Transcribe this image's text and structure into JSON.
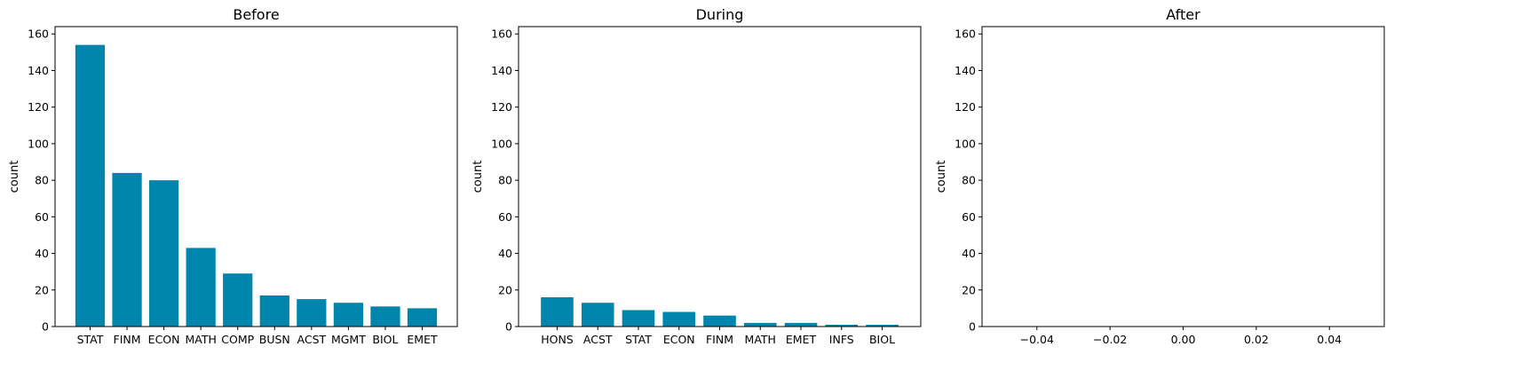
{
  "colors": {
    "bar": "#0086ad"
  },
  "chart_data": [
    {
      "type": "bar",
      "title": "Before",
      "xlabel": "",
      "ylabel": "count",
      "ylim": [
        0,
        164
      ],
      "yticks": [
        0,
        20,
        40,
        60,
        80,
        100,
        120,
        140,
        160
      ],
      "categories": [
        "STAT",
        "FINM",
        "ECON",
        "MATH",
        "COMP",
        "BUSN",
        "ACST",
        "MGMT",
        "BIOL",
        "EMET"
      ],
      "values": [
        154,
        84,
        80,
        43,
        29,
        17,
        15,
        13,
        11,
        10
      ],
      "grid": false
    },
    {
      "type": "bar",
      "title": "During",
      "xlabel": "",
      "ylabel": "count",
      "ylim": [
        0,
        164
      ],
      "yticks": [
        0,
        20,
        40,
        60,
        80,
        100,
        120,
        140,
        160
      ],
      "categories": [
        "HONS",
        "ACST",
        "STAT",
        "ECON",
        "FINM",
        "MATH",
        "EMET",
        "INFS",
        "BIOL"
      ],
      "values": [
        16,
        13,
        9,
        8,
        6,
        2,
        2,
        1,
        1
      ],
      "grid": false
    },
    {
      "type": "bar",
      "title": "After",
      "xlabel": "",
      "ylabel": "count",
      "ylim": [
        0,
        164
      ],
      "yticks": [
        0,
        20,
        40,
        60,
        80,
        100,
        120,
        140,
        160
      ],
      "categories": [],
      "values": [],
      "xlim": [
        -0.055,
        0.055
      ],
      "xticks": [
        -0.04,
        -0.02,
        0.0,
        0.02,
        0.04
      ],
      "xticklabels": [
        "−0.04",
        "−0.02",
        "0.00",
        "0.02",
        "0.04"
      ],
      "grid": false
    }
  ]
}
